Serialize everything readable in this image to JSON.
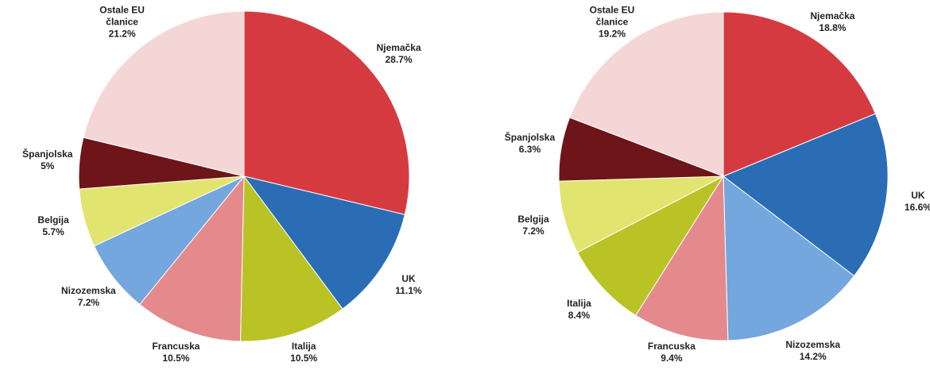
{
  "chart_data": [
    {
      "type": "pie",
      "categories": [
        "Njemačka",
        "UK",
        "Italija",
        "Francuska",
        "Nizozemska",
        "Belgija",
        "Španjolska",
        "Ostale EU članice"
      ],
      "values": [
        28.7,
        11.1,
        10.5,
        10.5,
        7.2,
        5.7,
        5,
        21.2
      ],
      "value_labels": [
        "28.7%",
        "11.1%",
        "10.5%",
        "10.5%",
        "7.2%",
        "5.7%",
        "5%",
        "21.2%"
      ],
      "colors": [
        "#d63a41",
        "#2a6db5",
        "#b9c325",
        "#e48a8c",
        "#73a7dd",
        "#e2e470",
        "#6e1519",
        "#f5d6d6"
      ]
    },
    {
      "type": "pie",
      "categories": [
        "Njemačka",
        "UK",
        "Nizozemska",
        "Francuska",
        "Italija",
        "Belgija",
        "Španjolska",
        "Ostale EU članice"
      ],
      "values": [
        18.8,
        16.6,
        14.2,
        9.4,
        8.4,
        7.2,
        6.3,
        19.2
      ],
      "value_labels": [
        "18.8%",
        "16.6%",
        "14.2%",
        "9.4%",
        "8.4%",
        "7.2%",
        "6.3%",
        "19.2%"
      ],
      "colors": [
        "#d63a41",
        "#2a6db5",
        "#73a7dd",
        "#e48a8c",
        "#b9c325",
        "#e2e470",
        "#6e1519",
        "#f5d6d6"
      ]
    }
  ]
}
